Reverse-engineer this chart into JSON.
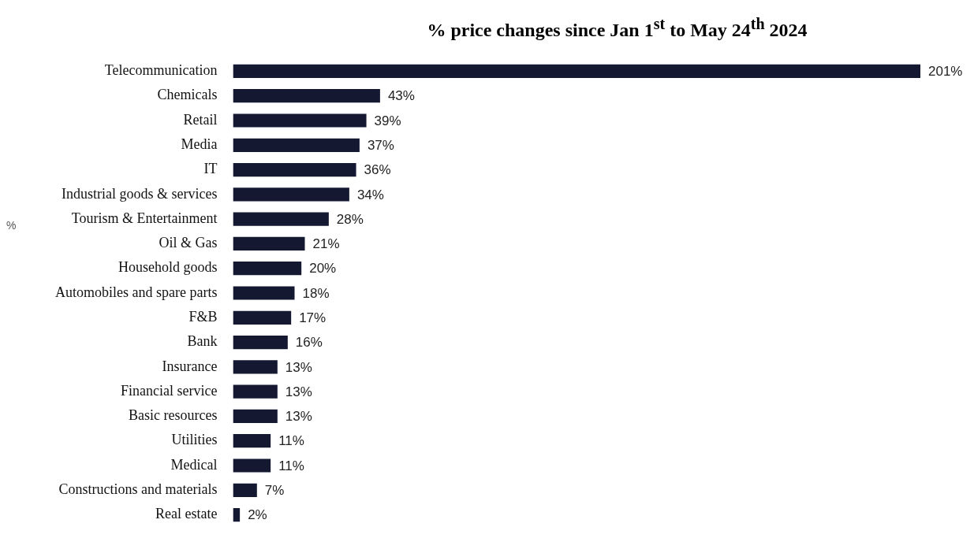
{
  "chart_data": {
    "type": "bar",
    "orientation": "horizontal",
    "title": "% price changes since Jan 1$^{st}$ to May 24$^{th}$ 2024",
    "categories": [
      "Telecommunication",
      "Chemicals",
      "Retail",
      "Media",
      "IT",
      "Industrial goods & services",
      "Tourism & Entertainment",
      "Oil & Gas",
      "Household goods",
      "Automobiles and spare parts",
      "F&B",
      "Bank",
      "Insurance",
      "Financial service",
      "Basic resources",
      "Utilities",
      "Medical",
      "Constructions and materials",
      "Real estate"
    ],
    "values": [
      201,
      43,
      39,
      37,
      36,
      34,
      28,
      21,
      20,
      18,
      17,
      16,
      13,
      13,
      13,
      11,
      11,
      7,
      2
    ],
    "value_labels": [
      "201%",
      "43%",
      "39%",
      "37%",
      "36%",
      "34%",
      "28%",
      "21%",
      "20%",
      "18%",
      "17%",
      "16%",
      "13%",
      "13%",
      "13%",
      "11%",
      "11%",
      "7%",
      "2%"
    ],
    "color": "#141830",
    "annotations": [
      "%"
    ],
    "legend": false
  }
}
